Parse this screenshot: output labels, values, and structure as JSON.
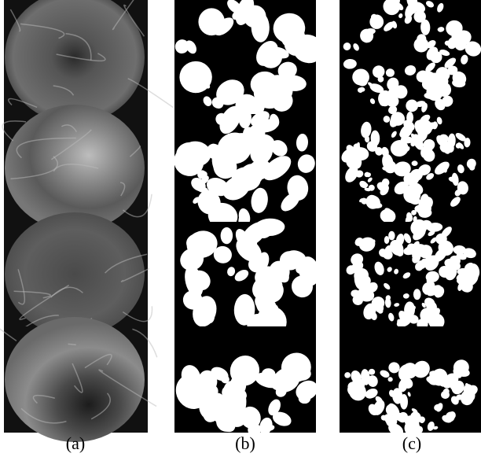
{
  "captions": [
    "(a)",
    "(b)",
    "(c)"
  ]
}
